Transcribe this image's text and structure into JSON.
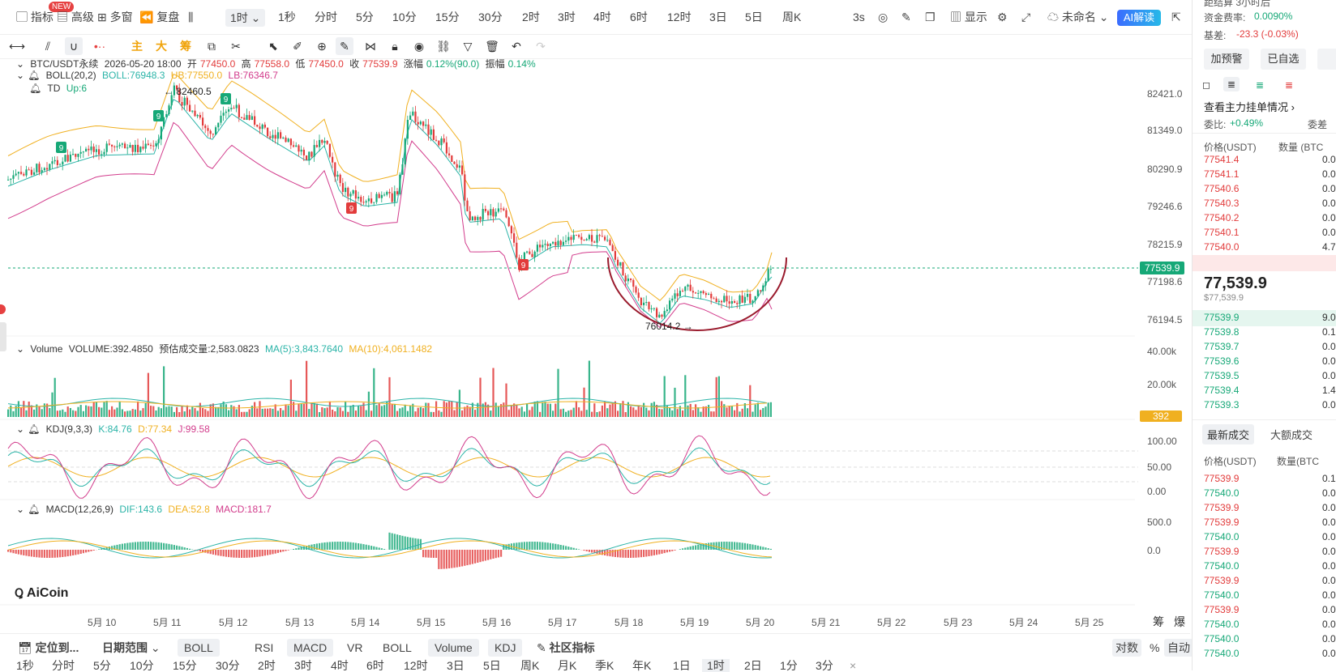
{
  "toolbar": {
    "indicators": "指标",
    "new_badge": "NEW",
    "advanced": "高级",
    "multi_window": "多窗",
    "replay": "复盘",
    "interval_selected": "1时",
    "intervals": [
      "1秒",
      "分时",
      "5分",
      "10分",
      "15分",
      "30分",
      "2时",
      "3时",
      "4时",
      "6时",
      "12时",
      "3日",
      "5日",
      "周K"
    ],
    "refresh": "3s",
    "display": "显示",
    "unnamed": "未命名",
    "ai_read": "AI解读"
  },
  "drawing": {
    "main": "主",
    "big": "大",
    "chip": "筹"
  },
  "legend": {
    "symbol": "BTC/USDT永续",
    "datetime": "2026-05-20 18:00",
    "open_label": "开",
    "open": "77450.0",
    "high_label": "高",
    "high": "77558.0",
    "low_label": "低",
    "low": "77450.0",
    "close_label": "收",
    "close": "77539.9",
    "change_label": "涨幅",
    "change": "0.12%(90.0)",
    "amp_label": "振幅",
    "amp": "0.14%",
    "boll_name": "BOLL(20,2)",
    "boll": "BOLL:76948.3",
    "ub": "UB:77550.0",
    "lb": "LB:76346.7",
    "td_name": "TD",
    "td": "Up:6",
    "vol_name": "Volume",
    "vol": "VOLUME:392.4850",
    "vol_est": "预估成交量:2,583.0823",
    "ma5": "MA(5):3,843.7640",
    "ma10": "MA(10):4,061.1482",
    "kdj_name": "KDJ(9,3,3)",
    "k": "K:84.76",
    "d": "D:77.34",
    "j": "J:99.58",
    "macd_name": "MACD(12,26,9)",
    "dif": "DIF:143.6",
    "dea": "DEA:52.8",
    "macd": "MACD:181.7"
  },
  "annotations": {
    "high_mark": "← 82460.5",
    "low_mark": "76014.2 →",
    "td_marker": "9"
  },
  "price_axis": [
    "82421.0",
    "81349.0",
    "80290.9",
    "79246.6",
    "78215.9",
    "77198.6",
    "76194.5"
  ],
  "current_price_tag": "77539.9",
  "volume_axis": [
    "40.00k",
    "20.00k"
  ],
  "volume_tag": "392",
  "kdj_axis": [
    "100.00",
    "50.00",
    "0.00"
  ],
  "macd_axis": [
    "500.0",
    "0.0"
  ],
  "x_axis": [
    "5月 10",
    "5月 11",
    "5月 12",
    "5月 13",
    "5月 14",
    "5月 15",
    "5月 16",
    "5月 17",
    "5月 18",
    "5月 19",
    "5月 20",
    "5月 21",
    "5月 22",
    "5月 23",
    "5月 24",
    "5月 25"
  ],
  "x_right_labels": [
    "筹",
    "爆"
  ],
  "watermark": "AiCoin",
  "bottom": {
    "locate": "定位到...",
    "date_range": "日期范围",
    "indicators": [
      "BOLL",
      "RSI",
      "MACD",
      "VR",
      "BOLL",
      "Volume",
      "KDJ"
    ],
    "indicator_selected": [
      "BOLL",
      "MACD",
      "Volume",
      "KDJ"
    ],
    "community": "社区指标",
    "log": "对数",
    "percent": "%",
    "auto": "自动",
    "intervals": [
      "1秒",
      "分时",
      "5分",
      "10分",
      "15分",
      "30分",
      "2时",
      "3时",
      "4时",
      "6时",
      "12时",
      "3日",
      "5日",
      "周K",
      "月K",
      "季K",
      "年K",
      "1日",
      "1时",
      "2日",
      "1分",
      "3分"
    ],
    "interval_selected": "1时",
    "close": "×"
  },
  "panel": {
    "funding_top": "距结算  3小时后",
    "funding_label": "资金费率:",
    "funding": "0.0090%",
    "basis_label": "基差:",
    "basis": "-23.3 (-0.03%)",
    "alert_btn": "加预警",
    "fav_btn": "已自选",
    "more_btn": "",
    "main_orders": "查看主力挂单情况",
    "ratio_label": "委比:",
    "ratio": "+0.49%",
    "diff_label": "委差",
    "price_head": "价格(USDT)",
    "qty_head": "数量 (BTC",
    "asks": [
      [
        "77541.4",
        "0.0"
      ],
      [
        "77541.1",
        "0.0"
      ],
      [
        "77540.6",
        "0.0"
      ],
      [
        "77540.3",
        "0.0"
      ],
      [
        "77540.2",
        "0.0"
      ],
      [
        "77540.1",
        "0.0"
      ],
      [
        "77540.0",
        "4.7"
      ]
    ],
    "last_price": "77,539.9",
    "last_price_usd": "$77,539.9",
    "bids": [
      [
        "77539.9",
        "9.0"
      ],
      [
        "77539.8",
        "0.1"
      ],
      [
        "77539.7",
        "0.0"
      ],
      [
        "77539.6",
        "0.0"
      ],
      [
        "77539.5",
        "0.0"
      ],
      [
        "77539.4",
        "1.4"
      ],
      [
        "77539.3",
        "0.0"
      ]
    ],
    "tab_latest": "最新成交",
    "tab_large": "大额成交",
    "trade_price_head": "价格(USDT)",
    "trade_qty_head": "数量(BTC",
    "trades": [
      [
        "77539.9",
        "0.1",
        "red"
      ],
      [
        "77540.0",
        "0.0",
        "green"
      ],
      [
        "77539.9",
        "0.0",
        "red"
      ],
      [
        "77539.9",
        "0.0",
        "red"
      ],
      [
        "77540.0",
        "0.0",
        "green"
      ],
      [
        "77539.9",
        "0.0",
        "red"
      ],
      [
        "77540.0",
        "0.0",
        "green"
      ],
      [
        "77539.9",
        "0.0",
        "red"
      ],
      [
        "77540.0",
        "0.0",
        "green"
      ],
      [
        "77539.9",
        "0.0",
        "red"
      ],
      [
        "77540.0",
        "0.0",
        "green"
      ],
      [
        "77540.0",
        "0.0",
        "green"
      ],
      [
        "77540.0",
        "0.0",
        "green"
      ]
    ]
  },
  "colors": {
    "up": "#16a877",
    "down": "#e23b3b",
    "boll_mid": "#2bb4a8",
    "boll_ub": "#f0b020",
    "boll_lb": "#d23c8c",
    "arc": "#9a1b2d"
  }
}
